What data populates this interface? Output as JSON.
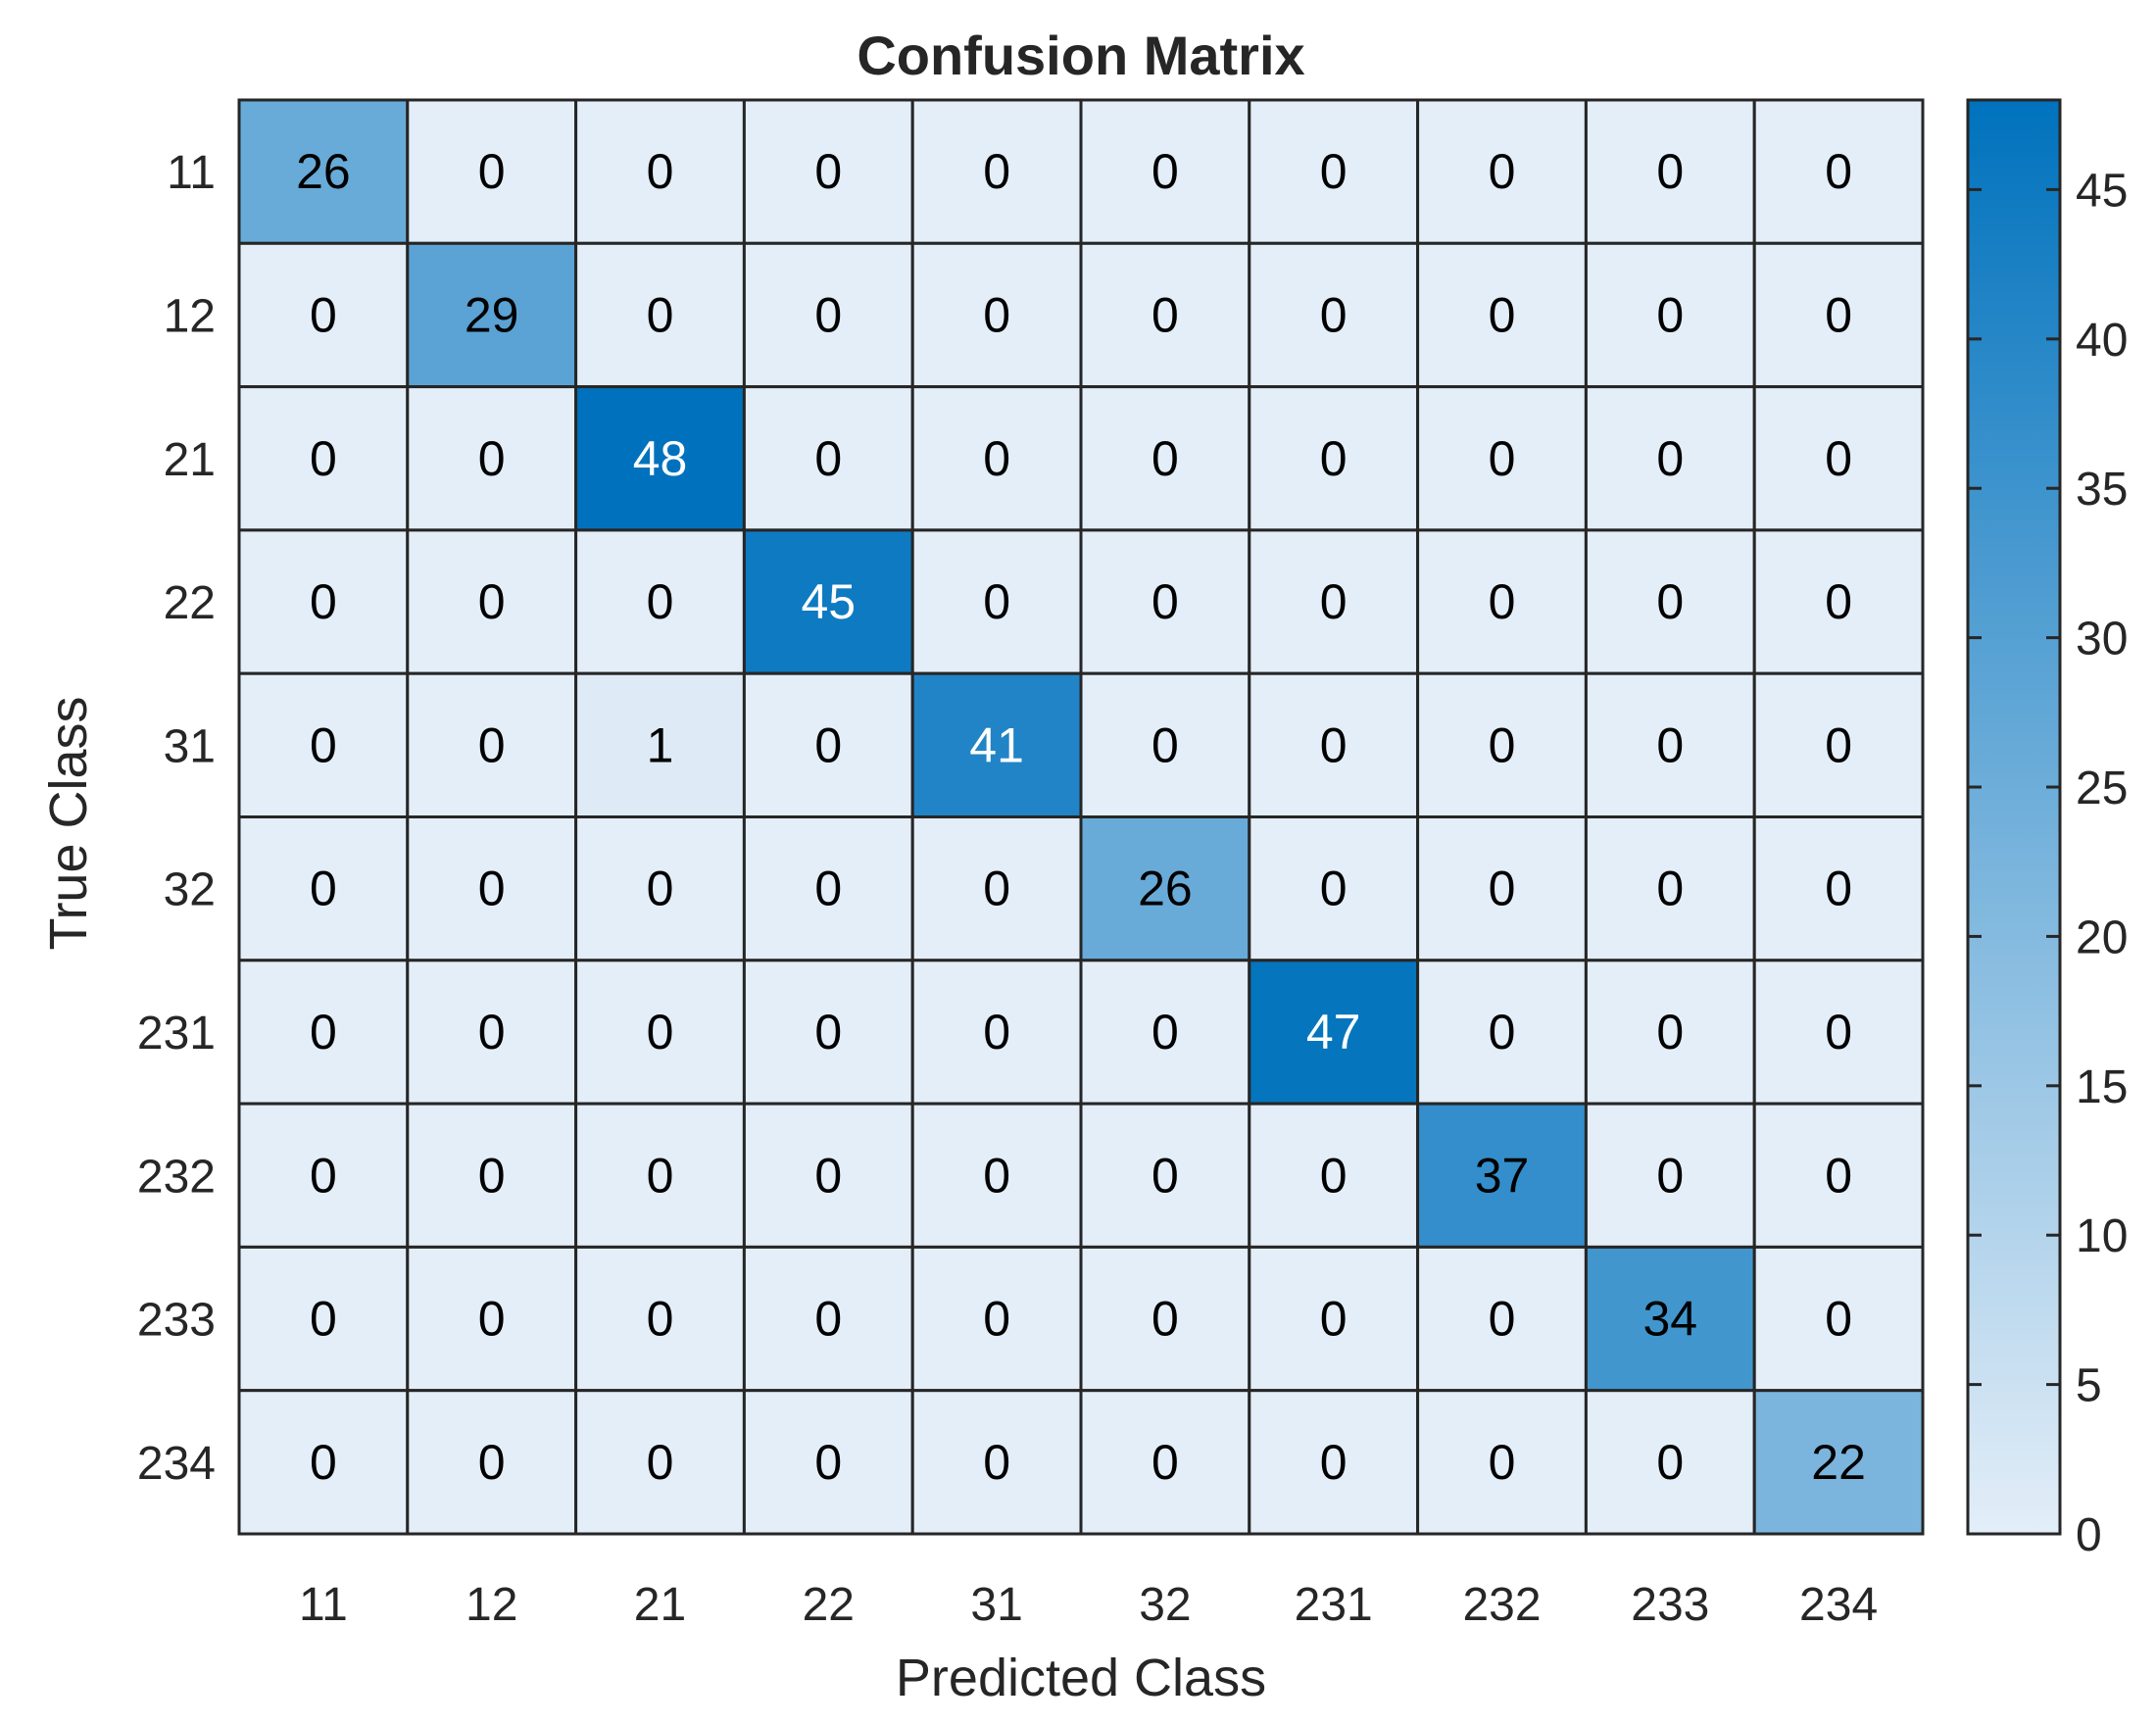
{
  "chart_data": {
    "type": "heatmap",
    "title": "Confusion Matrix",
    "xlabel": "Predicted Class",
    "ylabel": "True Class",
    "x_categories": [
      "11",
      "12",
      "21",
      "22",
      "31",
      "32",
      "231",
      "232",
      "233",
      "234"
    ],
    "y_categories": [
      "11",
      "12",
      "21",
      "22",
      "31",
      "32",
      "231",
      "232",
      "233",
      "234"
    ],
    "values": [
      [
        26,
        0,
        0,
        0,
        0,
        0,
        0,
        0,
        0,
        0
      ],
      [
        0,
        29,
        0,
        0,
        0,
        0,
        0,
        0,
        0,
        0
      ],
      [
        0,
        0,
        48,
        0,
        0,
        0,
        0,
        0,
        0,
        0
      ],
      [
        0,
        0,
        0,
        45,
        0,
        0,
        0,
        0,
        0,
        0
      ],
      [
        0,
        0,
        1,
        0,
        41,
        0,
        0,
        0,
        0,
        0
      ],
      [
        0,
        0,
        0,
        0,
        0,
        26,
        0,
        0,
        0,
        0
      ],
      [
        0,
        0,
        0,
        0,
        0,
        0,
        47,
        0,
        0,
        0
      ],
      [
        0,
        0,
        0,
        0,
        0,
        0,
        0,
        37,
        0,
        0
      ],
      [
        0,
        0,
        0,
        0,
        0,
        0,
        0,
        0,
        34,
        0
      ],
      [
        0,
        0,
        0,
        0,
        0,
        0,
        0,
        0,
        0,
        22
      ]
    ],
    "colorbar": {
      "range": [
        0,
        48
      ],
      "ticks": [
        0,
        5,
        10,
        15,
        20,
        25,
        30,
        35,
        40,
        45
      ],
      "color_low": "#e3eef8",
      "color_high": "#0072bd"
    }
  }
}
